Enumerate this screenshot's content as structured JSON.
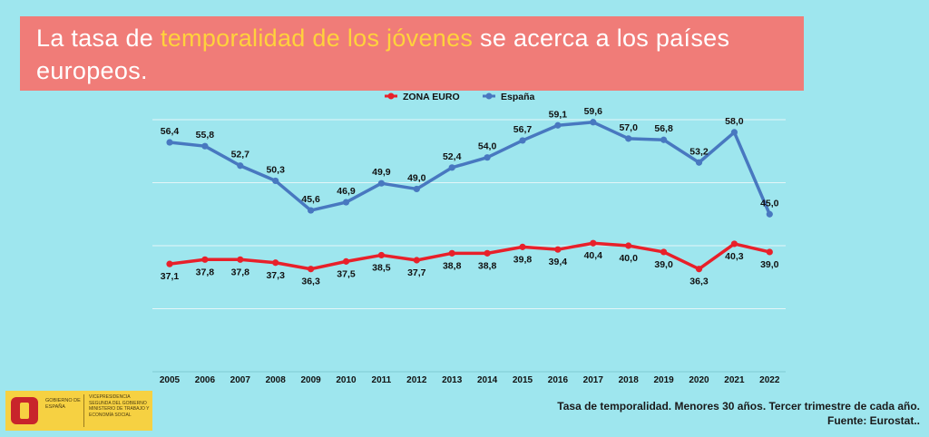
{
  "title": {
    "part1": "La tasa de ",
    "highlight": "temporalidad de los jóvenes",
    "part2": " se acerca a los países europeos."
  },
  "chart_data": {
    "type": "line",
    "title": "",
    "xlabel": "",
    "ylabel": "",
    "categories": [
      "2005",
      "2006",
      "2007",
      "2008",
      "2009",
      "2010",
      "2011",
      "2012",
      "2013",
      "2014",
      "2015",
      "2016",
      "2017",
      "2018",
      "2019",
      "2020",
      "2021",
      "2022"
    ],
    "series": [
      {
        "name": "ZONA EURO",
        "color": "#e8202a",
        "values": [
          37.1,
          37.8,
          37.8,
          37.3,
          36.3,
          37.5,
          38.5,
          37.7,
          38.8,
          38.8,
          39.8,
          39.4,
          40.4,
          40.0,
          39.0,
          36.3,
          40.3,
          39.0
        ],
        "labels": [
          "37,1",
          "37,8",
          "37,8",
          "37,3",
          "36,3",
          "37,5",
          "38,5",
          "37,7",
          "38,8",
          "38,8",
          "39,8",
          "39,4",
          "40,4",
          "40,0",
          "39,0",
          "36,3",
          "40,3",
          "39,0"
        ]
      },
      {
        "name": "España",
        "color": "#4878c0",
        "values": [
          56.4,
          55.8,
          52.7,
          50.3,
          45.6,
          46.9,
          49.9,
          49.0,
          52.4,
          54.0,
          56.7,
          59.1,
          59.6,
          57.0,
          56.8,
          53.2,
          58.0,
          45.0
        ],
        "labels": [
          "56,4",
          "55,8",
          "52,7",
          "50,3",
          "45,6",
          "46,9",
          "49,9",
          "49,0",
          "52,4",
          "54,0",
          "56,7",
          "59,1",
          "59,6",
          "57,0",
          "56,8",
          "53,2",
          "58,0",
          "45,0"
        ]
      }
    ],
    "ylim": [
      20,
      60
    ],
    "grid": true,
    "legend_position": "top-center"
  },
  "footer": {
    "caption": "Tasa de temporalidad. Menores 30 años. Tercer trimestre de cada año.",
    "source": "Fuente: Eurostat.."
  },
  "logo": {
    "gobierno": "GOBIERNO DE ESPAÑA",
    "line1": "VICEPRESIDENCIA SEGUNDA DEL GOBIERNO",
    "line2": "MINISTERIO DE TRABAJO Y ECONOMÍA SOCIAL"
  }
}
